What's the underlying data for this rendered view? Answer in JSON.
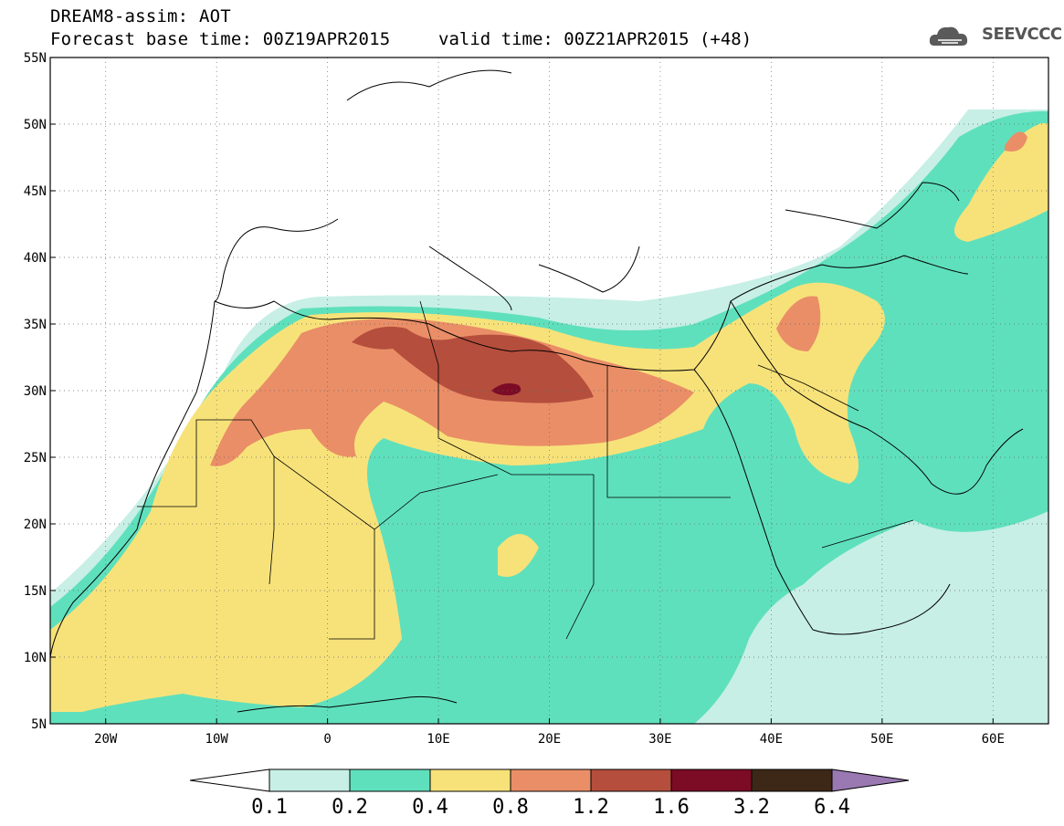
{
  "header": {
    "title_line1": "DREAM8-assim: AOT",
    "base_time": "Forecast base time: 00Z19APR2015",
    "valid_time": "valid time: 00Z21APR2015 (+48)",
    "logo_text": "SEEVCCC",
    "logo_icon": "cloud-icon"
  },
  "map": {
    "lon_range": [
      -25,
      65
    ],
    "lat_range": [
      5,
      55
    ],
    "lon_ticks": [
      "20W",
      "10W",
      "0",
      "10E",
      "20E",
      "30E",
      "40E",
      "50E",
      "60E"
    ],
    "lat_ticks": [
      "5N",
      "10N",
      "15N",
      "20N",
      "25N",
      "30N",
      "35N",
      "40N",
      "45N",
      "50N",
      "55N"
    ]
  },
  "colorbar": {
    "labels": [
      "0.1",
      "0.2",
      "0.4",
      "0.8",
      "1.2",
      "1.6",
      "3.2",
      "6.4"
    ],
    "colors": [
      "#c7efe6",
      "#5fe0bc",
      "#f7e27a",
      "#ea8e67",
      "#b54e3d",
      "#7c0b26",
      "#3d2818",
      "#9a79b2"
    ],
    "low_color": "#ffffff",
    "high_color": "#9a79b2"
  },
  "colors": {
    "c1": "#c7efe6",
    "c2": "#5fe0bc",
    "c3": "#f7e27a",
    "c4": "#ea8e67",
    "c5": "#b54e3d",
    "c6": "#7c0b26"
  }
}
